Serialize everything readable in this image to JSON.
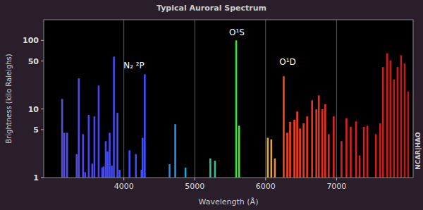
{
  "chart_data": {
    "type": "bar",
    "title": "Typical Auroral Spectrum",
    "x_label": "Wavelength (Å)",
    "y_label": "Brightness (kilo Raleighs)",
    "x": [
      3130,
      3160,
      3200,
      3335,
      3365,
      3425,
      3455,
      3505,
      3555,
      3585,
      3645,
      3695,
      3715,
      3745,
      3770,
      3800,
      3830,
      3860,
      3910,
      3940,
      4080,
      4170,
      4250,
      4265,
      4295,
      4645,
      4725,
      4870,
      5220,
      5285,
      5585,
      5625,
      6030,
      6080,
      6130,
      6255,
      6305,
      6345,
      6405,
      6445,
      6485,
      6535,
      6585,
      6655,
      6715,
      6750,
      6800,
      6840,
      6890,
      6960,
      7070,
      7140,
      7200,
      7275,
      7325,
      7385,
      7435,
      7555,
      7615,
      7655,
      7715,
      7760,
      7810,
      7860,
      7910,
      7960,
      8010
    ],
    "values": [
      14,
      4.5,
      4.5,
      2.2,
      28,
      4.3,
      1.2,
      8.2,
      1.6,
      7.8,
      22,
      1.4,
      1.45,
      3.4,
      2.4,
      4.5,
      1.5,
      58,
      8.8,
      1.3,
      2.5,
      2.2,
      1.3,
      3.8,
      32,
      1.57,
      6,
      1.4,
      1.9,
      1.76,
      100,
      5.7,
      3.8,
      3.6,
      1.9,
      30,
      4.5,
      6.5,
      7,
      9.2,
      5.2,
      6.2,
      7.8,
      13.4,
      9.9,
      15.8,
      9.9,
      11.7,
      4.3,
      7.8,
      3.4,
      7.3,
      5.5,
      6.6,
      2.1,
      5.5,
      5.7,
      4.3,
      6.2,
      41,
      65,
      51,
      27,
      41,
      61,
      46,
      18
    ],
    "xlim": [
      2870,
      8080
    ],
    "ylim": [
      1,
      200
    ],
    "xticks": [
      4000,
      5000,
      6000,
      7000
    ],
    "yticks": [
      1,
      5,
      10,
      50,
      100
    ],
    "log": "y",
    "grid": true,
    "annotations": [
      "N₂ ²P",
      "O¹S",
      "O¹D"
    ],
    "credit": "NCAR|HAO"
  }
}
